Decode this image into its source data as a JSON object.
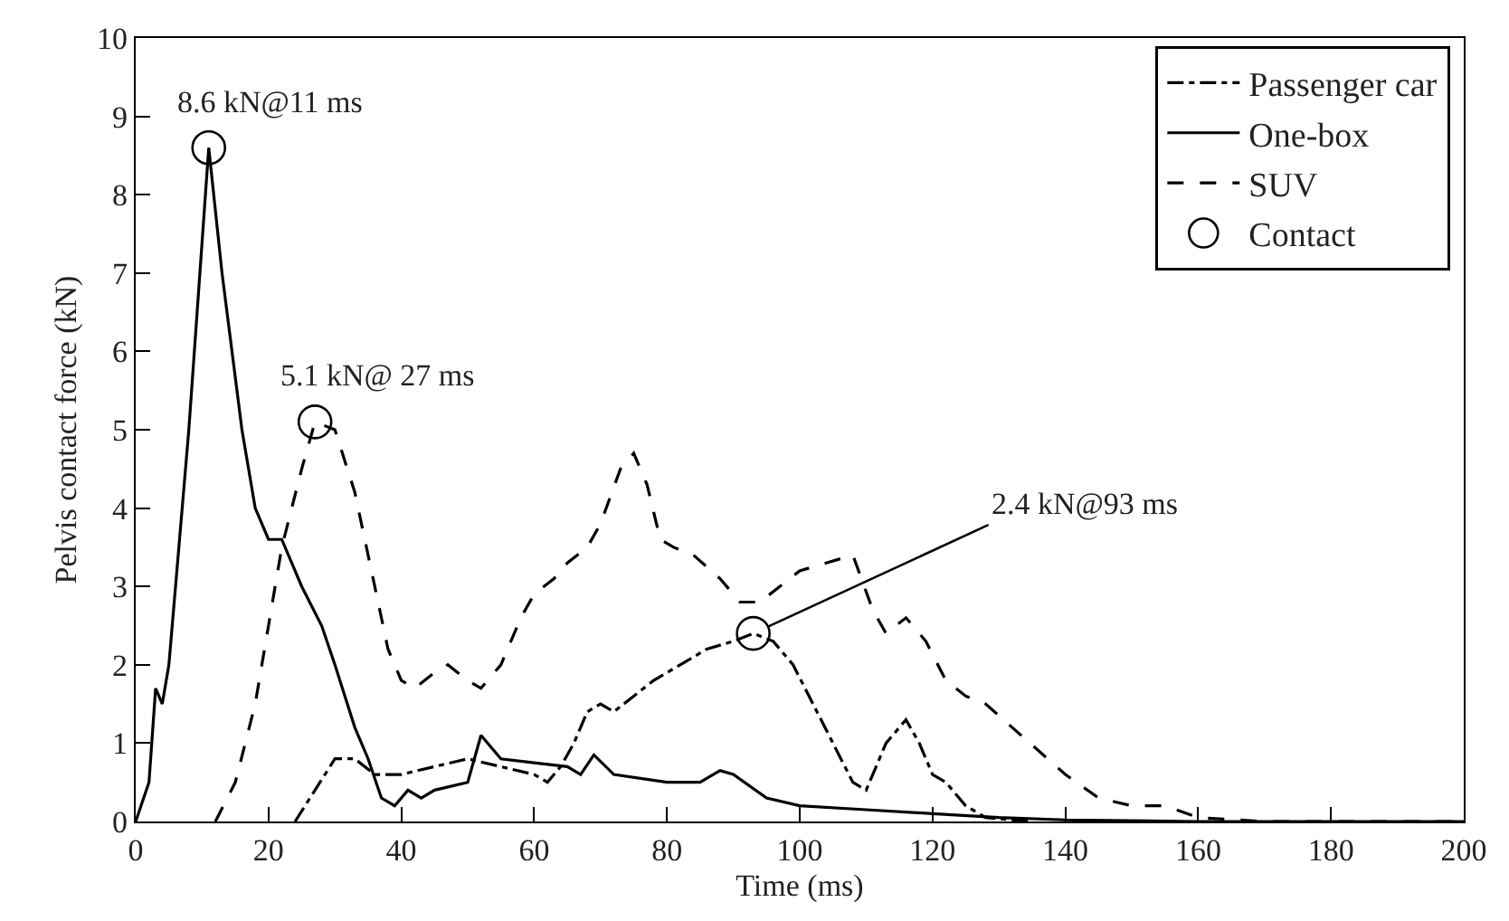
{
  "chart_data": {
    "type": "line",
    "xlabel": "Time (ms)",
    "ylabel": "Pelvis contact force (kN)",
    "xlim": [
      0,
      200
    ],
    "ylim": [
      0,
      10
    ],
    "xticks": [
      0,
      20,
      40,
      60,
      80,
      100,
      120,
      140,
      160,
      180,
      200
    ],
    "yticks": [
      0,
      1,
      2,
      3,
      4,
      5,
      6,
      7,
      8,
      9,
      10
    ],
    "legend": "top right",
    "series": [
      {
        "name": "Passenger car",
        "color": "#000000",
        "line_style": "dashdot",
        "x": [
          24,
          27,
          30,
          33,
          36,
          40,
          45,
          50,
          55,
          60,
          62,
          64,
          66,
          68,
          70,
          72,
          75,
          78,
          82,
          86,
          90,
          93,
          96,
          99,
          102,
          105,
          108,
          110,
          113,
          116,
          118,
          120,
          122,
          125,
          128,
          135
        ],
        "values": [
          0,
          0.4,
          0.8,
          0.8,
          0.6,
          0.6,
          0.7,
          0.8,
          0.7,
          0.6,
          0.5,
          0.7,
          1.0,
          1.4,
          1.5,
          1.4,
          1.6,
          1.8,
          2.0,
          2.2,
          2.3,
          2.4,
          2.3,
          2.0,
          1.5,
          1.0,
          0.5,
          0.4,
          1.0,
          1.3,
          1.0,
          0.6,
          0.5,
          0.2,
          0.05,
          0
        ]
      },
      {
        "name": "One-box",
        "color": "#000000",
        "line_style": "solid",
        "x": [
          0,
          2,
          3,
          4,
          5,
          8,
          11,
          13,
          16,
          18,
          20,
          22,
          25,
          28,
          30,
          33,
          35,
          37,
          39,
          41,
          43,
          45,
          50,
          52,
          55,
          60,
          65,
          67,
          69,
          72,
          80,
          85,
          88,
          90,
          95,
          100,
          110,
          120,
          130,
          140,
          160,
          200
        ],
        "values": [
          0,
          0.5,
          1.7,
          1.5,
          2.0,
          5.0,
          8.6,
          7.0,
          5.0,
          4.0,
          3.6,
          3.6,
          3.0,
          2.5,
          2.0,
          1.2,
          0.8,
          0.3,
          0.2,
          0.4,
          0.3,
          0.4,
          0.5,
          1.1,
          0.8,
          0.75,
          0.7,
          0.6,
          0.85,
          0.6,
          0.5,
          0.5,
          0.65,
          0.6,
          0.3,
          0.2,
          0.15,
          0.1,
          0.05,
          0.02,
          0,
          0
        ]
      },
      {
        "name": "SUV",
        "color": "#000000",
        "line_style": "dashed",
        "x": [
          12,
          15,
          18,
          20,
          22,
          25,
          27,
          30,
          33,
          36,
          38,
          40,
          42,
          45,
          47,
          50,
          52,
          55,
          58,
          60,
          63,
          65,
          68,
          70,
          73,
          75,
          77,
          79,
          81,
          84,
          88,
          91,
          94,
          97,
          100,
          104,
          108,
          111,
          113,
          116,
          119,
          122,
          125,
          128,
          132,
          136,
          140,
          145,
          150,
          155,
          160,
          170,
          200
        ],
        "values": [
          0,
          0.5,
          1.5,
          2.5,
          3.5,
          4.5,
          5.1,
          5.0,
          4.2,
          3.0,
          2.2,
          1.8,
          1.7,
          1.9,
          2.0,
          1.8,
          1.7,
          2.0,
          2.6,
          2.9,
          3.1,
          3.3,
          3.5,
          3.8,
          4.5,
          4.7,
          4.3,
          3.6,
          3.5,
          3.4,
          3.1,
          2.8,
          2.8,
          3.0,
          3.2,
          3.3,
          3.4,
          2.7,
          2.4,
          2.6,
          2.3,
          1.8,
          1.6,
          1.5,
          1.2,
          0.9,
          0.6,
          0.3,
          0.2,
          0.2,
          0.05,
          0,
          0
        ]
      },
      {
        "name": "Contact",
        "type": "scatter",
        "color": "#000000",
        "marker": "circle",
        "x": [
          11,
          27,
          93
        ],
        "values": [
          8.6,
          5.1,
          2.4
        ]
      }
    ],
    "annotations": [
      {
        "text": "8.6 kN@11 ms",
        "x": 11,
        "y": 8.6
      },
      {
        "text": "5.1 kN@ 27 ms",
        "x": 27,
        "y": 5.1
      },
      {
        "text": "2.4 kN@93 ms",
        "x": 93,
        "y": 2.4
      }
    ]
  }
}
